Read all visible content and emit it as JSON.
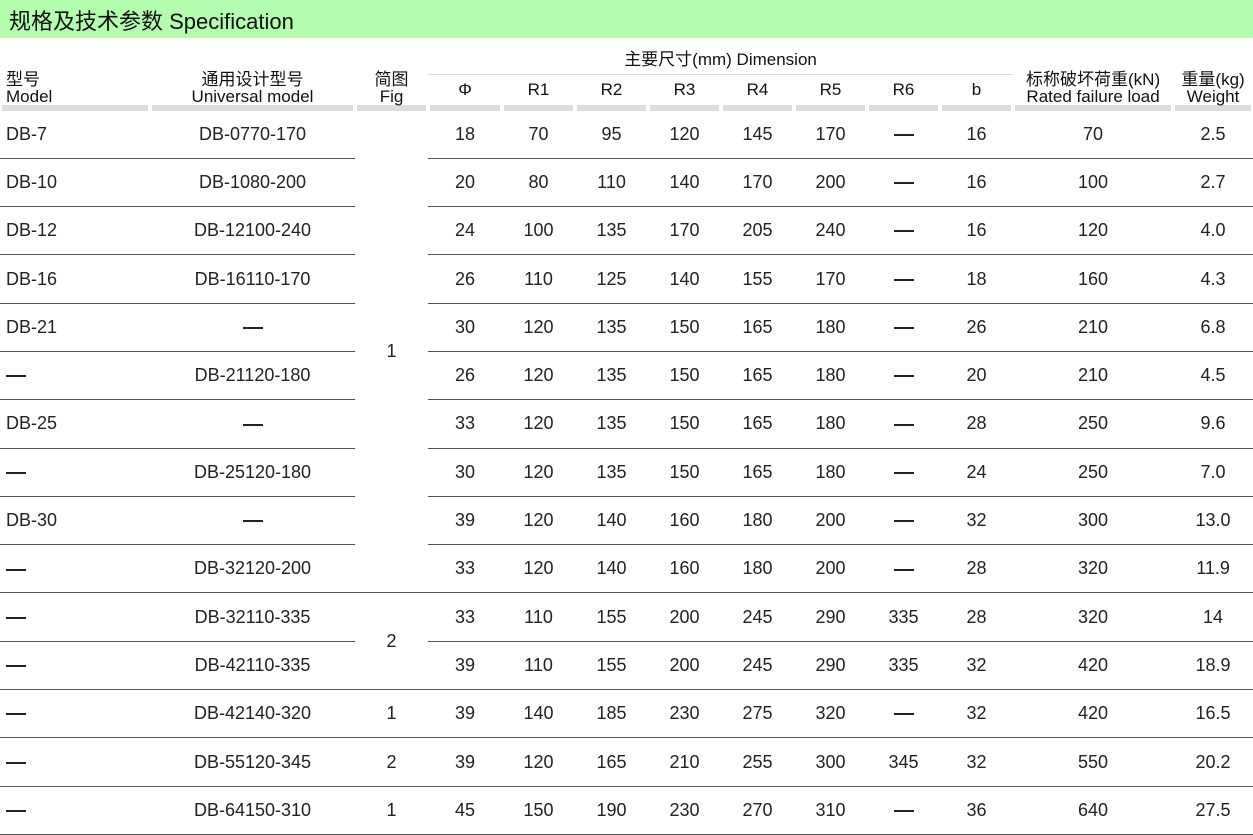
{
  "title": "规格及技术参数  Specification",
  "headers": {
    "model_cn": "型号",
    "model_en": "Model",
    "universal_cn": "通用设计型号",
    "universal_en": "Universal  model",
    "fig_cn": "简图",
    "fig_en": "Fig",
    "dimension": "主要尺寸(mm)  Dimension",
    "dims": [
      "Φ",
      "R1",
      "R2",
      "R3",
      "R4",
      "R5",
      "R6",
      "b"
    ],
    "load_cn": "标称破坏荷重(kN)",
    "load_en": "Rated failure load",
    "weight_cn": "重量(kg)",
    "weight_en": "Weight"
  },
  "fig_groups": [
    {
      "fig": "1",
      "rows": 10
    },
    {
      "fig": "2",
      "rows": 2
    },
    {
      "fig": "1",
      "rows": 1
    },
    {
      "fig": "2",
      "rows": 1
    },
    {
      "fig": "1",
      "rows": 1
    }
  ],
  "rows": [
    [
      "DB-7",
      "DB-0770-170",
      "18",
      "70",
      "95",
      "120",
      "145",
      "170",
      "—",
      "16",
      "70",
      "2.5"
    ],
    [
      "DB-10",
      "DB-1080-200",
      "20",
      "80",
      "110",
      "140",
      "170",
      "200",
      "—",
      "16",
      "100",
      "2.7"
    ],
    [
      "DB-12",
      "DB-12100-240",
      "24",
      "100",
      "135",
      "170",
      "205",
      "240",
      "—",
      "16",
      "120",
      "4.0"
    ],
    [
      "DB-16",
      "DB-16110-170",
      "26",
      "110",
      "125",
      "140",
      "155",
      "170",
      "—",
      "18",
      "160",
      "4.3"
    ],
    [
      "DB-21",
      "—",
      "30",
      "120",
      "135",
      "150",
      "165",
      "180",
      "—",
      "26",
      "210",
      "6.8"
    ],
    [
      "—",
      "DB-21120-180",
      "26",
      "120",
      "135",
      "150",
      "165",
      "180",
      "—",
      "20",
      "210",
      "4.5"
    ],
    [
      "DB-25",
      "—",
      "33",
      "120",
      "135",
      "150",
      "165",
      "180",
      "—",
      "28",
      "250",
      "9.6"
    ],
    [
      "—",
      "DB-25120-180",
      "30",
      "120",
      "135",
      "150",
      "165",
      "180",
      "—",
      "24",
      "250",
      "7.0"
    ],
    [
      "DB-30",
      "—",
      "39",
      "120",
      "140",
      "160",
      "180",
      "200",
      "—",
      "32",
      "300",
      "13.0"
    ],
    [
      "—",
      "DB-32120-200",
      "33",
      "120",
      "140",
      "160",
      "180",
      "200",
      "—",
      "28",
      "320",
      "11.9"
    ],
    [
      "—",
      "DB-32110-335",
      "33",
      "110",
      "155",
      "200",
      "245",
      "290",
      "335",
      "28",
      "320",
      "14"
    ],
    [
      "—",
      "DB-42110-335",
      "39",
      "110",
      "155",
      "200",
      "245",
      "290",
      "335",
      "32",
      "420",
      "18.9"
    ],
    [
      "—",
      "DB-42140-320",
      "39",
      "140",
      "185",
      "230",
      "275",
      "320",
      "—",
      "32",
      "420",
      "16.5"
    ],
    [
      "—",
      "DB-55120-345",
      "39",
      "120",
      "165",
      "210",
      "255",
      "300",
      "345",
      "32",
      "550",
      "20.2"
    ],
    [
      "—",
      "DB-64150-310",
      "45",
      "150",
      "190",
      "230",
      "270",
      "310",
      "—",
      "36",
      "640",
      "27.5"
    ]
  ]
}
